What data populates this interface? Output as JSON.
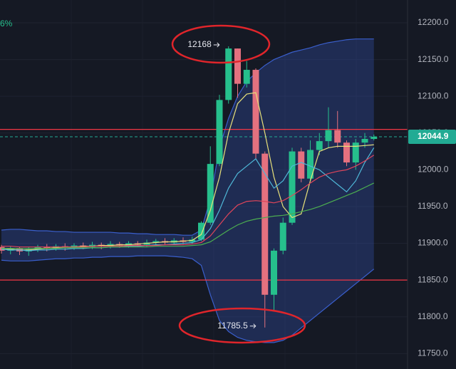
{
  "chart_data": {
    "type": "candlestick",
    "corner_text": "6%",
    "ylim": [
      11729,
      12231
    ],
    "yticks": [
      {
        "value": 12200,
        "label": "12200.0"
      },
      {
        "value": 12150,
        "label": "12150.0"
      },
      {
        "value": 12100,
        "label": "12100.0"
      },
      {
        "value": 12050,
        "label": "12050.0"
      },
      {
        "value": 12000,
        "label": "12000.0"
      },
      {
        "value": 11950,
        "label": "11950.0"
      },
      {
        "value": 11900,
        "label": "11900.0"
      },
      {
        "value": 11850,
        "label": "11850.0"
      },
      {
        "value": 11800,
        "label": "11800.0"
      },
      {
        "value": 11750,
        "label": "11750.0"
      }
    ],
    "grid": true,
    "categories": [
      null,
      null,
      null,
      null,
      null,
      null,
      null,
      null,
      null,
      null,
      null,
      null,
      null,
      null,
      null,
      null,
      null,
      null,
      null,
      null,
      null,
      null,
      null,
      null,
      null,
      null,
      null,
      null,
      null,
      null,
      null,
      null,
      null,
      null,
      null,
      null,
      null,
      null,
      null,
      null,
      null,
      null
    ],
    "up_color": "#26bf8c",
    "down_color": "#e4717f",
    "open": [
      11895,
      11890,
      11893,
      11889,
      11892,
      11895,
      11893,
      11896,
      11894,
      11897,
      11895,
      11898,
      11896,
      11899,
      11897,
      11900,
      11898,
      11901,
      11903,
      11901,
      11904,
      11902,
      11905,
      11928,
      12008,
      12095,
      12165,
      12117,
      12136,
      12022,
      11830,
      11890,
      11928,
      12025,
      11988,
      12027,
      12039,
      12054,
      12037,
      12010,
      12037,
      12042
    ],
    "high": [
      11898,
      11896,
      11895,
      11895,
      11898,
      11899,
      11899,
      11900,
      11900,
      11901,
      11902,
      11901,
      11903,
      11902,
      11903,
      11903,
      11905,
      11906,
      11907,
      11907,
      11908,
      11909,
      11930,
      12032,
      12102,
      12168,
      12165,
      12148,
      12138,
      12025,
      11893,
      11935,
      12030,
      12030,
      12040,
      12050,
      12085,
      12080,
      12040,
      12042,
      12050,
      12048
    ],
    "low": [
      11886,
      11885,
      11884,
      11883,
      11888,
      11889,
      11890,
      11890,
      11891,
      11892,
      11892,
      11892,
      11893,
      11894,
      11894,
      11895,
      11895,
      11897,
      11898,
      11898,
      11899,
      11899,
      11903,
      11925,
      12005,
      12090,
      12098,
      12112,
      12015,
      11785.5,
      11808,
      11885,
      11925,
      11983,
      11985,
      12020,
      12030,
      12030,
      12005,
      12000,
      12030,
      12040
    ],
    "close": [
      11890,
      11893,
      11889,
      11892,
      11895,
      11893,
      11896,
      11894,
      11897,
      11895,
      11898,
      11896,
      11899,
      11897,
      11900,
      11898,
      11901,
      11903,
      11901,
      11904,
      11902,
      11905,
      11928,
      12008,
      12095,
      12165,
      12117,
      12136,
      12022,
      11830,
      11890,
      11928,
      12025,
      11988,
      12027,
      12039,
      12054,
      12037,
      12010,
      12037,
      12042,
      12044.9
    ],
    "band": {
      "color": "#3a5fcd",
      "upper": [
        11918,
        11919,
        11919,
        11918,
        11917,
        11917,
        11916,
        11916,
        11915,
        11915,
        11915,
        11915,
        11915,
        11914,
        11914,
        11913,
        11913,
        11912,
        11912,
        11912,
        11911,
        11911,
        11918,
        11960,
        12030,
        12070,
        12100,
        12120,
        12132,
        12142,
        12150,
        12155,
        12160,
        12163,
        12166,
        12170,
        12173,
        12175,
        12177,
        12178,
        12178,
        12178
      ],
      "lower": [
        11877,
        11876,
        11876,
        11876,
        11877,
        11878,
        11879,
        11879,
        11880,
        11880,
        11881,
        11881,
        11882,
        11882,
        11882,
        11883,
        11883,
        11883,
        11883,
        11882,
        11881,
        11879,
        11870,
        11830,
        11795,
        11780,
        11772,
        11768,
        11766,
        11765,
        11765,
        11768,
        11775,
        11785,
        11795,
        11805,
        11815,
        11825,
        11835,
        11845,
        11855,
        11865
      ]
    },
    "overlays": [
      {
        "color": "#e8e17a",
        "values": [
          11893,
          11892,
          11891,
          11891,
          11892,
          11893,
          11894,
          11895,
          11895,
          11896,
          11896,
          11897,
          11897,
          11898,
          11898,
          11899,
          11900,
          11901,
          11902,
          11902,
          11903,
          11904,
          11912,
          11945,
          11990,
          12050,
          12090,
          12103,
          12105,
          12050,
          11990,
          11950,
          11935,
          11940,
          11985,
          12025,
          12030,
          12032,
          12032,
          12032,
          12033,
          12034
        ]
      },
      {
        "color": "#4fb8d8",
        "values": [
          11892,
          11891,
          11891,
          11890,
          11891,
          11891,
          11892,
          11892,
          11893,
          11893,
          11894,
          11894,
          11895,
          11895,
          11896,
          11896,
          11897,
          11898,
          11898,
          11899,
          11900,
          11901,
          11905,
          11920,
          11945,
          11975,
          11995,
          12005,
          12015,
          11995,
          11975,
          11985,
          12005,
          12010,
          12005,
          12000,
          11990,
          11980,
          11970,
          11985,
          12010,
          12030
        ]
      },
      {
        "color": "#e0455a",
        "values": [
          11896,
          11896,
          11895,
          11895,
          11895,
          11895,
          11895,
          11895,
          11895,
          11895,
          11896,
          11896,
          11896,
          11896,
          11897,
          11897,
          11897,
          11897,
          11898,
          11898,
          11898,
          11899,
          11901,
          11910,
          11925,
          11940,
          11952,
          11957,
          11958,
          11957,
          11955,
          11958,
          11965,
          11973,
          11982,
          11990,
          11995,
          11998,
          12000,
          12005,
          12012,
          12020
        ]
      },
      {
        "color": "#4caf50",
        "values": [
          11893,
          11893,
          11893,
          11893,
          11893,
          11893,
          11893,
          11894,
          11894,
          11894,
          11894,
          11894,
          11895,
          11895,
          11895,
          11895,
          11895,
          11896,
          11896,
          11896,
          11896,
          11897,
          11898,
          11902,
          11910,
          11918,
          11925,
          11930,
          11933,
          11935,
          11937,
          11938,
          11940,
          11943,
          11946,
          11950,
          11955,
          11960,
          11965,
          11970,
          11976,
          11982
        ]
      }
    ],
    "hlines": [
      {
        "value": 12055,
        "color": "#f23645"
      },
      {
        "value": 11850,
        "color": "#f23645"
      }
    ],
    "last_price": {
      "value": 12044.9,
      "color": "#22ab94"
    },
    "annotations": [
      {
        "label": "12168",
        "value": 12168,
        "index": 25
      },
      {
        "label": "11785.5",
        "value": 11785.5,
        "index": 29
      }
    ]
  }
}
